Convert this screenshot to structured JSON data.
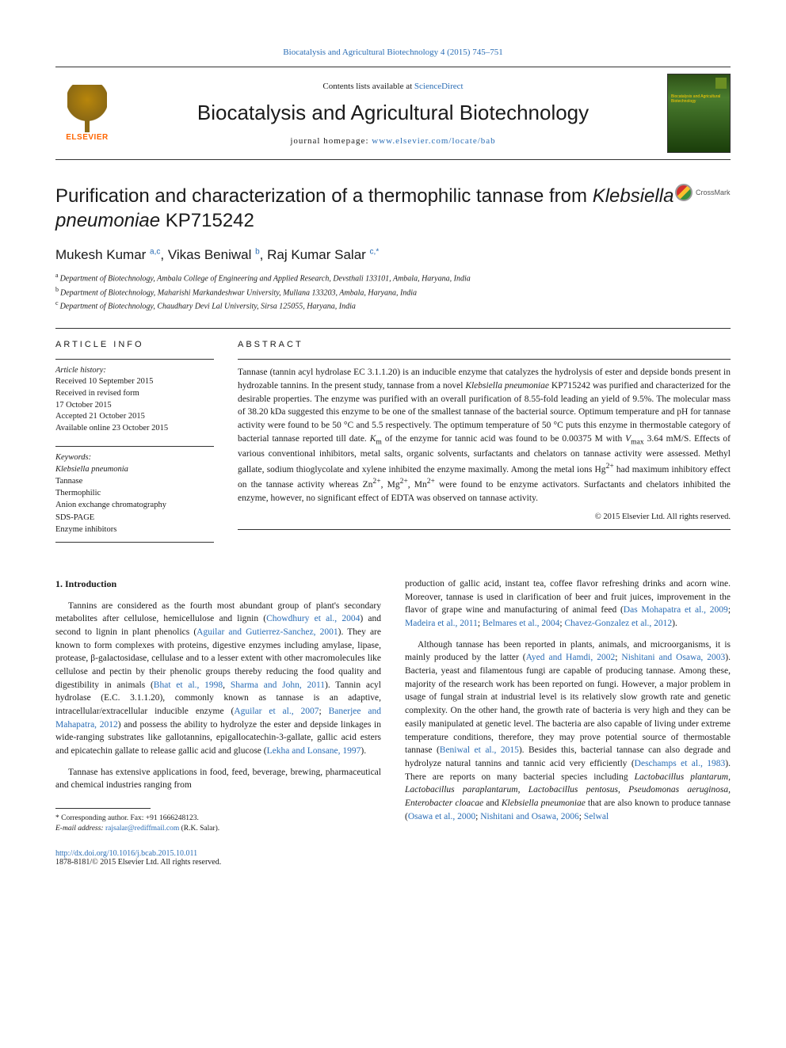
{
  "topLink": {
    "journal": "Biocatalysis and Agricultural Biotechnology",
    "volCite": "4 (2015) 745–751"
  },
  "header": {
    "publisherName": "ELSEVIER",
    "contentsPrefix": "Contents lists available at ",
    "contentsLinkText": "ScienceDirect",
    "journalName": "Biocatalysis and Agricultural Biotechnology",
    "homepagePrefix": "journal homepage: ",
    "homepageUrl": "www.elsevier.com/locate/bab",
    "coverTitle": "Biocatalysis and Agricultural Biotechnology"
  },
  "crossmark": "CrossMark",
  "title": {
    "prefix": "Purification and characterization of a thermophilic tannase from ",
    "species": "Klebsiella pneumoniae",
    "suffix": " KP715242"
  },
  "authors": [
    {
      "name": "Mukesh Kumar",
      "affs": "a,c"
    },
    {
      "name": "Vikas Beniwal",
      "affs": "b"
    },
    {
      "name": "Raj Kumar Salar",
      "affs": "c,",
      "corresponding": true
    }
  ],
  "affiliations": [
    {
      "label": "a",
      "text": "Department of Biotechnology, Ambala College of Engineering and Applied Research, Devsthali 133101, Ambala, Haryana, India"
    },
    {
      "label": "b",
      "text": "Department of Biotechnology, Maharishi Markandeshwar University, Mullana 133203, Ambala, Haryana, India"
    },
    {
      "label": "c",
      "text": "Department of Biotechnology, Chaudhary Devi Lal University, Sirsa 125055, Haryana, India"
    }
  ],
  "info": {
    "heading": "ARTICLE INFO",
    "historyLabel": "Article history:",
    "history": [
      "Received 10 September 2015",
      "Received in revised form",
      "17 October 2015",
      "Accepted 21 October 2015",
      "Available online 23 October 2015"
    ],
    "keywordsLabel": "Keywords:",
    "keywords": [
      "Klebsiella pneumonia",
      "Tannase",
      "Thermophilic",
      "Anion exchange chromatography",
      "SDS-PAGE",
      "Enzyme inhibitors"
    ]
  },
  "abstract": {
    "heading": "ABSTRACT",
    "text": "Tannase (tannin acyl hydrolase EC 3.1.1.20) is an inducible enzyme that catalyzes the hydrolysis of ester and depside bonds present in hydrozable tannins. In the present study, tannase from a novel Klebsiella pneumoniae KP715242 was purified and characterized for the desirable properties. The enzyme was purified with an overall purification of 8.55-fold leading an yield of 9.5%. The molecular mass of 38.20 kDa suggested this enzyme to be one of the smallest tannase of the bacterial source. Optimum temperature and pH for tannase activity were found to be 50 °C and 5.5 respectively. The optimum temperature of 50 °C puts this enzyme in thermostable category of bacterial tannase reported till date. Km of the enzyme for tannic acid was found to be 0.00375 M with Vmax 3.64 mM/S. Effects of various conventional inhibitors, metal salts, organic solvents, surfactants and chelators on tannase activity were assessed. Methyl gallate, sodium thioglycolate and xylene inhibited the enzyme maximally. Among the metal ions Hg2+ had maximum inhibitory effect on the tannase activity whereas Zn2+, Mg2+, Mn2+ were found to be enzyme activators. Surfactants and chelators inhibited the enzyme, however, no significant effect of EDTA was observed on tannase activity.",
    "copyright": "© 2015 Elsevier Ltd. All rights reserved."
  },
  "body": {
    "introHeading": "1. Introduction",
    "leftParas": [
      {
        "segments": [
          {
            "t": "Tannins are considered as the fourth most abundant group of plant's secondary metabolites after cellulose, hemicellulose and lignin ("
          },
          {
            "t": "Chowdhury et al., 2004",
            "link": true
          },
          {
            "t": ") and second to lignin in plant phenolics ("
          },
          {
            "t": "Aguilar and Gutierrez-Sanchez, 2001",
            "link": true
          },
          {
            "t": "). They are known to form complexes with proteins, digestive enzymes including amylase, lipase, protease, β-galactosidase, cellulase and to a lesser extent with other macromolecules like cellulose and pectin by their phenolic groups thereby reducing the food quality and digestibility in animals ("
          },
          {
            "t": "Bhat et al., 1998",
            "link": true
          },
          {
            "t": ", "
          },
          {
            "t": "Sharma and John, 2011",
            "link": true
          },
          {
            "t": "). Tannin acyl hydrolase (E.C. 3.1.1.20), commonly known as tannase is an adaptive, intracellular/extracellular inducible enzyme ("
          },
          {
            "t": "Aguilar et al., 2007",
            "link": true
          },
          {
            "t": "; "
          },
          {
            "t": "Banerjee and Mahapatra, 2012",
            "link": true
          },
          {
            "t": ") and possess the ability to hydrolyze the ester and depside linkages in wide-ranging substrates like gallotannins, epigallocatechin-3-gallate, gallic acid esters and epicatechin gallate to release gallic acid and glucose ("
          },
          {
            "t": "Lekha and Lonsane, 1997",
            "link": true
          },
          {
            "t": ")."
          }
        ]
      },
      {
        "segments": [
          {
            "t": "Tannase has extensive applications in food, feed, beverage, brewing, pharmaceutical and chemical industries ranging from"
          }
        ]
      }
    ],
    "rightParas": [
      {
        "segments": [
          {
            "t": "production of gallic acid, instant tea, coffee flavor refreshing drinks and acorn wine. Moreover, tannase is used in clarification of beer and fruit juices, improvement in the flavor of grape wine and manufacturing of animal feed ("
          },
          {
            "t": "Das Mohapatra et al., 2009",
            "link": true
          },
          {
            "t": "; "
          },
          {
            "t": "Madeira et al., 2011",
            "link": true
          },
          {
            "t": "; "
          },
          {
            "t": "Belmares et al., 2004",
            "link": true
          },
          {
            "t": "; "
          },
          {
            "t": "Chavez-Gonzalez et al., 2012",
            "link": true
          },
          {
            "t": ")."
          }
        ]
      },
      {
        "segments": [
          {
            "t": "Although tannase has been reported in plants, animals, and microorganisms, it is mainly produced by the latter ("
          },
          {
            "t": "Ayed and Hamdi, 2002",
            "link": true
          },
          {
            "t": "; "
          },
          {
            "t": "Nishitani and Osawa, 2003",
            "link": true
          },
          {
            "t": "). Bacteria, yeast and filamentous fungi are capable of producing tannase. Among these, majority of the research work has been reported on fungi. However, a major problem in usage of fungal strain at industrial level is its relatively slow growth rate and genetic complexity. On the other hand, the growth rate of bacteria is very high and they can be easily manipulated at genetic level. The bacteria are also capable of living under extreme temperature conditions, therefore, they may prove potential source of thermostable tannase ("
          },
          {
            "t": "Beniwal et al., 2015",
            "link": true
          },
          {
            "t": "). Besides this, bacterial tannase can also degrade and hydrolyze natural tannins and tannic acid very efficiently ("
          },
          {
            "t": "Deschamps et al., 1983",
            "link": true
          },
          {
            "t": "). There are reports on many bacterial species including "
          },
          {
            "t": "Lactobacillus plantarum",
            "italic": true
          },
          {
            "t": ", "
          },
          {
            "t": "Lactobacillus paraplantarum",
            "italic": true
          },
          {
            "t": ", "
          },
          {
            "t": "Lactobacillus pentosus, Pseudomonas aeruginosa, Enterobacter cloacae",
            "italic": true
          },
          {
            "t": " and "
          },
          {
            "t": "Klebsiella pneumoniae",
            "italic": true
          },
          {
            "t": " that are also known to produce tannase ("
          },
          {
            "t": "Osawa et al., 2000",
            "link": true
          },
          {
            "t": "; "
          },
          {
            "t": "Nishitani and Osawa, 2006",
            "link": true
          },
          {
            "t": "; "
          },
          {
            "t": "Selwal",
            "link": true
          }
        ]
      }
    ]
  },
  "footnote": {
    "corrPrefix": "* Corresponding author. Fax: ",
    "fax": "+91 1666248123.",
    "emailLabel": "E-mail address: ",
    "email": "rajsalar@rediffmail.com",
    "emailSuffix": " (R.K. Salar)."
  },
  "footer": {
    "doi": "http://dx.doi.org/10.1016/j.bcab.2015.10.011",
    "issn": "1878-8181/© 2015 Elsevier Ltd. All rights reserved."
  },
  "colors": {
    "link": "#2a6db5",
    "publisher": "#ff6600",
    "rule": "#333333"
  }
}
